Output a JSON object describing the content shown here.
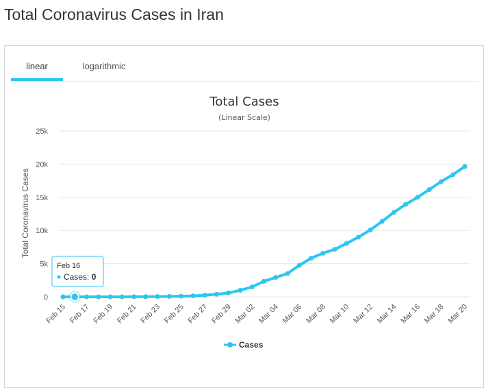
{
  "page": {
    "title": "Total Coronavirus Cases in Iran"
  },
  "tabs": [
    {
      "label": "linear",
      "active": true
    },
    {
      "label": "logarithmic",
      "active": false
    }
  ],
  "colors": {
    "series": "#2cc6f2",
    "accent": "#2cc6f2",
    "grid": "#e6e6e6"
  },
  "tooltip": {
    "date": "Feb 16",
    "series": "Cases",
    "value": 0
  },
  "chart_data": {
    "type": "line",
    "title": "Total Cases",
    "subtitle": "(Linear Scale)",
    "ylabel": "Total Coronavirus Cases",
    "xlabel": "",
    "ylim": [
      0,
      25000
    ],
    "yticks": [
      {
        "value": 0,
        "label": "0"
      },
      {
        "value": 5000,
        "label": "5k"
      },
      {
        "value": 10000,
        "label": "10k"
      },
      {
        "value": 15000,
        "label": "15k"
      },
      {
        "value": 20000,
        "label": "20k"
      },
      {
        "value": 25000,
        "label": "25k"
      }
    ],
    "x": [
      "Feb 15",
      "Feb 16",
      "Feb 17",
      "Feb 18",
      "Feb 19",
      "Feb 20",
      "Feb 21",
      "Feb 22",
      "Feb 23",
      "Feb 24",
      "Feb 25",
      "Feb 26",
      "Feb 27",
      "Feb 28",
      "Feb 29",
      "Mar 01",
      "Mar 02",
      "Mar 03",
      "Mar 04",
      "Mar 05",
      "Mar 06",
      "Mar 07",
      "Mar 08",
      "Mar 09",
      "Mar 10",
      "Mar 11",
      "Mar 12",
      "Mar 13",
      "Mar 14",
      "Mar 15",
      "Mar 16",
      "Mar 17",
      "Mar 18",
      "Mar 19",
      "Mar 20"
    ],
    "xtick_labels": [
      "Feb 15",
      "Feb 17",
      "Feb 19",
      "Feb 21",
      "Feb 23",
      "Feb 25",
      "Feb 27",
      "Feb 29",
      "Mar 02",
      "Mar 04",
      "Mar 06",
      "Mar 08",
      "Mar 10",
      "Mar 12",
      "Mar 14",
      "Mar 16",
      "Mar 18",
      "Mar 20"
    ],
    "series": [
      {
        "name": "Cases",
        "values": [
          0,
          0,
          0,
          0,
          2,
          5,
          18,
          28,
          43,
          61,
          95,
          139,
          245,
          388,
          593,
          978,
          1501,
          2336,
          2922,
          3513,
          4747,
          5823,
          6566,
          7161,
          8042,
          9000,
          10075,
          11364,
          12729,
          13938,
          14991,
          16169,
          17361,
          18407,
          19644
        ]
      }
    ],
    "grid": true,
    "legend": "bottom-center"
  }
}
